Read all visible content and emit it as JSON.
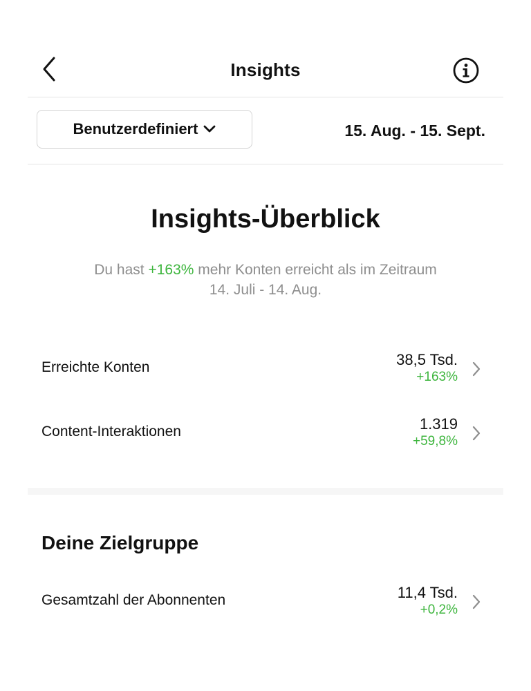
{
  "header": {
    "title": "Insights",
    "back_icon": "chevron-left-icon",
    "info_icon": "info-icon"
  },
  "filter": {
    "dropdown_label": "Benutzerdefiniert",
    "date_range": "15. Aug. - 15. Sept."
  },
  "overview": {
    "title": "Insights-Überblick",
    "text_before": "Du hast ",
    "highlight": "+163%",
    "text_after": " mehr Konten erreicht als im Zeitraum",
    "text_line2": "14. Juli - 14. Aug."
  },
  "metrics": [
    {
      "label": "Erreichte Konten",
      "value": "38,5 Tsd.",
      "change": "+163%"
    },
    {
      "label": "Content-Interaktionen",
      "value": "1.319",
      "change": "+59,8%"
    }
  ],
  "audience": {
    "title": "Deine Zielgruppe",
    "items": [
      {
        "label": "Gesamtzahl der Abonnenten",
        "value": "11,4 Tsd.",
        "change": "+0,2%"
      }
    ]
  },
  "colors": {
    "positive": "#3db53d",
    "muted_text": "#8e8e8e",
    "divider": "#e4e4e4"
  }
}
